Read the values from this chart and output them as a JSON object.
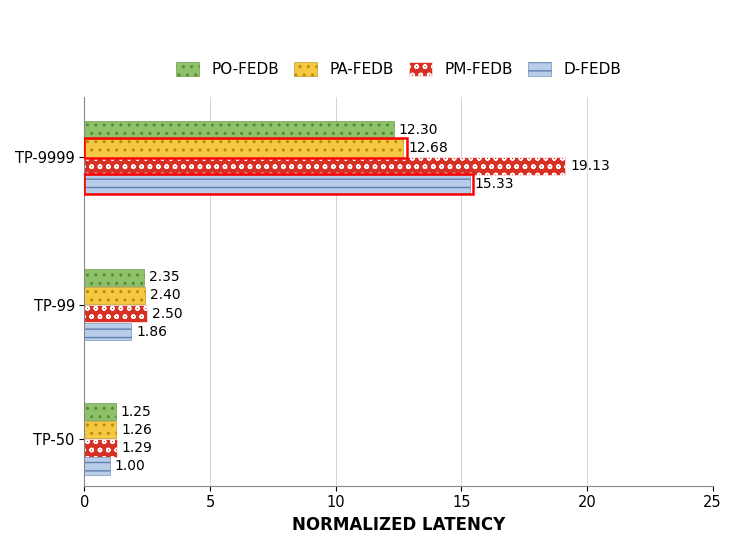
{
  "categories": [
    "TP-9999",
    "TP-99",
    "TP-50"
  ],
  "series": {
    "PO-FEDB": [
      12.3,
      2.35,
      1.25
    ],
    "PA-FEDB": [
      12.68,
      2.4,
      1.26
    ],
    "PM-FEDB": [
      19.13,
      2.5,
      1.29
    ],
    "D-FEDB": [
      15.33,
      1.86,
      1.0
    ]
  },
  "colors": {
    "PO-FEDB": "#8DC16A",
    "PA-FEDB": "#F5C842",
    "PM-FEDB": "#D93025",
    "D-FEDB": "#B8CEE8"
  },
  "hatches": {
    "PO-FEDB": "....",
    "PA-FEDB": "....",
    "PM-FEDB": "....",
    "D-FEDB": "---"
  },
  "xlabel": "NORMALIZED LATENCY",
  "xlim": [
    0,
    25
  ],
  "xticks": [
    0,
    5,
    10,
    15,
    20,
    25
  ],
  "bar_height": 0.13,
  "label_fontsize": 10,
  "tick_fontsize": 10.5,
  "legend_fontsize": 11,
  "xlabel_fontsize": 12
}
